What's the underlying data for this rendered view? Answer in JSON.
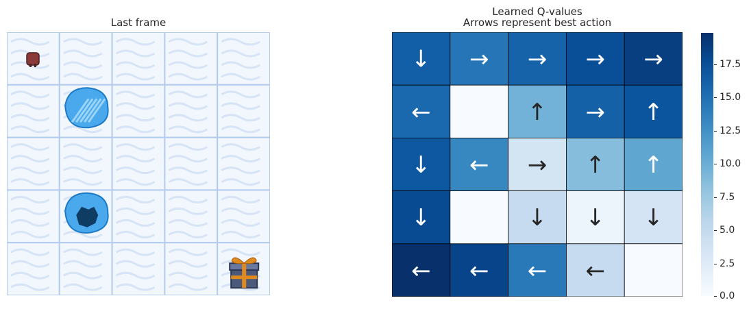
{
  "left_panel": {
    "title": "Last frame",
    "grid_size": 5,
    "cells": [
      [
        "agent",
        "frozen",
        "frozen",
        "frozen",
        "frozen"
      ],
      [
        "frozen",
        "ice-patch",
        "frozen",
        "frozen",
        "frozen"
      ],
      [
        "frozen",
        "frozen",
        "frozen",
        "frozen",
        "frozen"
      ],
      [
        "frozen",
        "hole",
        "frozen",
        "frozen",
        "frozen"
      ],
      [
        "frozen",
        "frozen",
        "frozen",
        "frozen",
        "goal"
      ]
    ],
    "colors": {
      "snow": "#f2f6fd",
      "grid_line": "#b4cdee",
      "ice": "#4aa9ec",
      "hole": "#0f3c63",
      "agent": "#8b3a3a",
      "gift": "#4b5a7a",
      "ribbon": "#e08a1e"
    }
  },
  "chart_data": {
    "type": "heatmap",
    "title": "Learned Q-values",
    "subtitle": "Arrows represent best action",
    "rows": 5,
    "cols": 5,
    "values": [
      [
        16.3,
        14.6,
        16.0,
        17.6,
        18.8
      ],
      [
        15.6,
        0.0,
        9.6,
        16.2,
        17.1
      ],
      [
        16.9,
        13.3,
        3.6,
        8.6,
        10.7
      ],
      [
        17.9,
        0.0,
        5.0,
        1.0,
        3.5
      ],
      [
        19.9,
        18.4,
        14.3,
        5.0,
        0.0
      ]
    ],
    "arrows": [
      [
        "↓",
        "→",
        "→",
        "→",
        "→"
      ],
      [
        "←",
        "",
        "↑",
        "→",
        "↑"
      ],
      [
        "↓",
        "←",
        "→",
        "↑",
        "↑"
      ],
      [
        "↓",
        "",
        "↓",
        "↓",
        "↓"
      ],
      [
        "←",
        "←",
        "←",
        "←",
        ""
      ]
    ],
    "colormap": "Blues",
    "vmin": 0,
    "vmax": 19.9,
    "colorbar_ticks": [
      "0.0",
      "2.5",
      "5.0",
      "7.5",
      "10.0",
      "12.5",
      "15.0",
      "17.5"
    ],
    "colorbar_tick_values": [
      0,
      2.5,
      5,
      7.5,
      10,
      12.5,
      15,
      17.5
    ],
    "annotation_dark_text_color": "#262626",
    "annotation_light_text_color": "#ffffff"
  }
}
